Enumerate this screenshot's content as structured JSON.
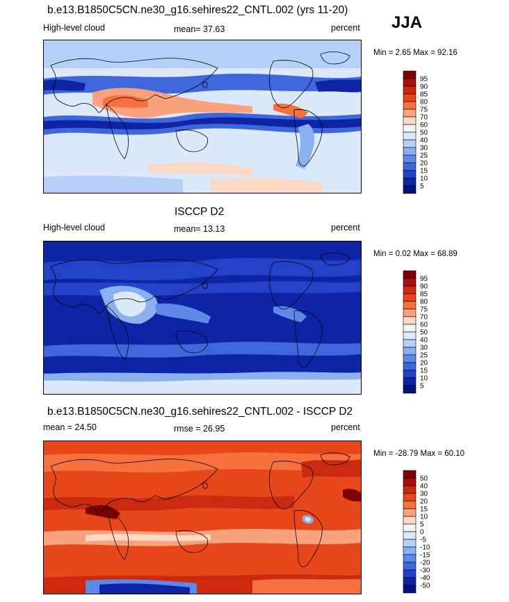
{
  "header": {
    "season": "JJA"
  },
  "panels": [
    {
      "title": "b.e13.B1850C5CN.ne30_g16.sehires22_CNTL.002 (yrs 11-20)",
      "left_label": "High-level cloud",
      "center_label": "mean=  37.63",
      "right_label": "percent",
      "minmax_label": "Min =   2.65 Max =  92.16",
      "legend_ref": "abs"
    },
    {
      "title": "ISCCP D2",
      "left_label": "High-level cloud",
      "center_label": "mean=  13.13",
      "right_label": "percent",
      "minmax_label": "Min =   0.02 Max =  68.89",
      "legend_ref": "abs"
    },
    {
      "title": "b.e13.B1850C5CN.ne30_g16.sehires22_CNTL.002 - ISCCP D2",
      "left_label": "mean =  24.50",
      "center_label": "rmse =  26.95",
      "right_label": "percent",
      "minmax_label": "Min = -28.79 Max =  60.10",
      "legend_ref": "diff"
    }
  ],
  "chart_data": [
    {
      "type": "heatmap",
      "title": "b.e13.B1850C5CN.ne30_g16.sehires22_CNTL.002 (yrs 11-20)",
      "variable": "High-level cloud",
      "units": "percent",
      "mean": 37.63,
      "min": 2.65,
      "max": 92.16,
      "colorbar_levels": [
        5,
        10,
        15,
        20,
        25,
        30,
        40,
        50,
        60,
        70,
        75,
        80,
        85,
        90,
        95
      ]
    },
    {
      "type": "heatmap",
      "title": "ISCCP D2",
      "variable": "High-level cloud",
      "units": "percent",
      "mean": 13.13,
      "min": 0.02,
      "max": 68.89,
      "colorbar_levels": [
        5,
        10,
        15,
        20,
        25,
        30,
        40,
        50,
        60,
        70,
        75,
        80,
        85,
        90,
        95
      ]
    },
    {
      "type": "heatmap",
      "title": "b.e13.B1850C5CN.ne30_g16.sehires22_CNTL.002 - ISCCP D2",
      "units": "percent",
      "mean": 24.5,
      "rmse": 26.95,
      "min": -28.79,
      "max": 60.1,
      "colorbar_levels": [
        -50,
        -40,
        -30,
        -20,
        -15,
        -10,
        -5,
        0,
        5,
        10,
        15,
        20,
        30,
        40,
        50
      ]
    }
  ],
  "legends": {
    "abs": {
      "labels": [
        "95",
        "90",
        "85",
        "80",
        "75",
        "70",
        "60",
        "50",
        "40",
        "30",
        "25",
        "20",
        "15",
        "10",
        "5"
      ],
      "colors": [
        "#7f0000",
        "#a50f0f",
        "#cc2a10",
        "#e8461b",
        "#f5713e",
        "#f9a27d",
        "#fcd9c4",
        "#f4f2f2",
        "#dce9fb",
        "#b7d0f7",
        "#8bb0f0",
        "#5d8ae8",
        "#3e67dc",
        "#2342c8",
        "#0d25a4",
        "#04127a"
      ]
    },
    "diff": {
      "labels": [
        "50",
        "40",
        "30",
        "20",
        "15",
        "10",
        "5",
        "0",
        "-5",
        "-10",
        "-15",
        "-20",
        "-30",
        "-40",
        "-50"
      ],
      "colors": [
        "#7f0000",
        "#a50f0f",
        "#cc2a10",
        "#e8461b",
        "#f5713e",
        "#f9a27d",
        "#fcd9c4",
        "#f4f2f2",
        "#dce9fb",
        "#b7d0f7",
        "#8bb0f0",
        "#5d8ae8",
        "#3e67dc",
        "#2342c8",
        "#0d25a4",
        "#04127a"
      ]
    }
  }
}
